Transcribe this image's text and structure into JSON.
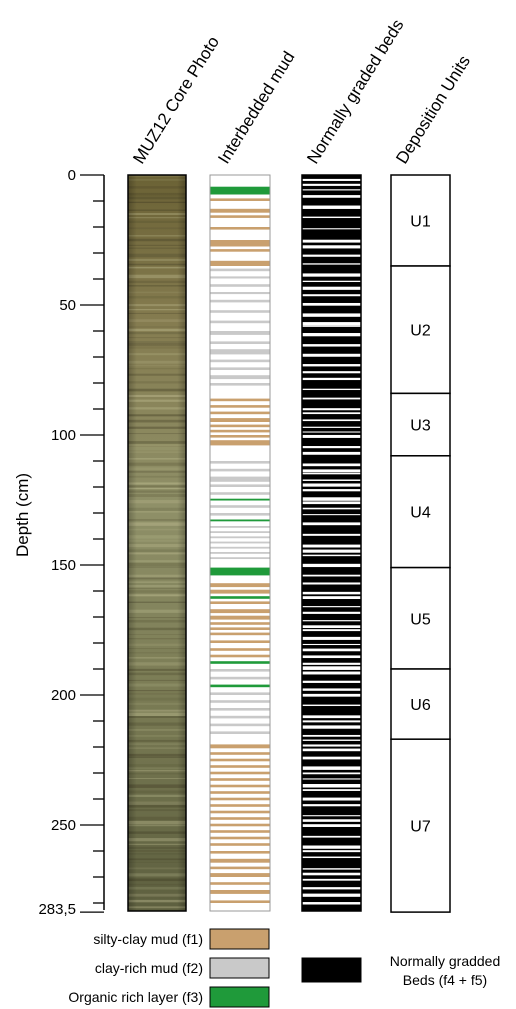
{
  "column_titles": {
    "core_photo": "MUZ12 Core Photo",
    "interbedded_mud": "Interbedded mud",
    "graded_beds": "Normally graded beds",
    "units": "Deposition Units"
  },
  "axis": {
    "label": "Depth (cm)",
    "ticks": [
      "0",
      "50",
      "100",
      "150",
      "200",
      "250",
      "283,5"
    ],
    "max_depth": 283.5
  },
  "units": [
    {
      "name": "U1",
      "top": 0,
      "bottom": 35
    },
    {
      "name": "U2",
      "top": 35,
      "bottom": 84
    },
    {
      "name": "U3",
      "top": 84,
      "bottom": 108
    },
    {
      "name": "U4",
      "top": 108,
      "bottom": 151
    },
    {
      "name": "U5",
      "top": 151,
      "bottom": 190
    },
    {
      "name": "U6",
      "top": 190,
      "bottom": 217
    },
    {
      "name": "U7",
      "top": 217,
      "bottom": 283.5
    }
  ],
  "legend": {
    "silty": "silty-clay mud (f1)",
    "clay": "clay-rich mud (f2)",
    "organic": "Organic rich layer (f3)",
    "graded_line1": "Normally gradded",
    "graded_line2": "Beds (f4 + f5)"
  },
  "colors": {
    "silty": "#c9a06e",
    "clay": "#c9c9c9",
    "organic": "#1f9a3a",
    "graded": "#000000"
  },
  "mud_layers": [
    {
      "type": "organic",
      "top": 4.5,
      "bottom": 7.5
    },
    {
      "type": "silty",
      "top": 9,
      "bottom": 10
    },
    {
      "type": "silty",
      "top": 13,
      "bottom": 14.5
    },
    {
      "type": "silty",
      "top": 15.5,
      "bottom": 16.5
    },
    {
      "type": "silty",
      "top": 20,
      "bottom": 21
    },
    {
      "type": "silty",
      "top": 25,
      "bottom": 27.5
    },
    {
      "type": "silty",
      "top": 28.5,
      "bottom": 29.5
    },
    {
      "type": "silty",
      "top": 33,
      "bottom": 35
    },
    {
      "type": "clay",
      "top": 36,
      "bottom": 37
    },
    {
      "type": "clay",
      "top": 39,
      "bottom": 39.8
    },
    {
      "type": "clay",
      "top": 42,
      "bottom": 43
    },
    {
      "type": "clay",
      "top": 45,
      "bottom": 45.8
    },
    {
      "type": "clay",
      "top": 48,
      "bottom": 49
    },
    {
      "type": "clay",
      "top": 52,
      "bottom": 53
    },
    {
      "type": "clay",
      "top": 56,
      "bottom": 57
    },
    {
      "type": "clay",
      "top": 60,
      "bottom": 61.5
    },
    {
      "type": "clay",
      "top": 64,
      "bottom": 65
    },
    {
      "type": "clay",
      "top": 67,
      "bottom": 69
    },
    {
      "type": "clay",
      "top": 71,
      "bottom": 72
    },
    {
      "type": "clay",
      "top": 74,
      "bottom": 75
    },
    {
      "type": "clay",
      "top": 77,
      "bottom": 78.5
    },
    {
      "type": "clay",
      "top": 80,
      "bottom": 81
    },
    {
      "type": "silty",
      "top": 86,
      "bottom": 87
    },
    {
      "type": "silty",
      "top": 88.5,
      "bottom": 89.5
    },
    {
      "type": "silty",
      "top": 91,
      "bottom": 92
    },
    {
      "type": "silty",
      "top": 93.5,
      "bottom": 95
    },
    {
      "type": "silty",
      "top": 96,
      "bottom": 97
    },
    {
      "type": "silty",
      "top": 98,
      "bottom": 99
    },
    {
      "type": "silty",
      "top": 100,
      "bottom": 101
    },
    {
      "type": "silty",
      "top": 102,
      "bottom": 104
    },
    {
      "type": "clay",
      "top": 110,
      "bottom": 111
    },
    {
      "type": "clay",
      "top": 113,
      "bottom": 114
    },
    {
      "type": "clay",
      "top": 116,
      "bottom": 118
    },
    {
      "type": "clay",
      "top": 119,
      "bottom": 120
    },
    {
      "type": "clay",
      "top": 122,
      "bottom": 123
    },
    {
      "type": "organic",
      "top": 124.5,
      "bottom": 125.2
    },
    {
      "type": "clay",
      "top": 127,
      "bottom": 128
    },
    {
      "type": "clay",
      "top": 130,
      "bottom": 131
    },
    {
      "type": "organic",
      "top": 132.5,
      "bottom": 133.2
    },
    {
      "type": "clay",
      "top": 135,
      "bottom": 135.7
    },
    {
      "type": "clay",
      "top": 137,
      "bottom": 137.7
    },
    {
      "type": "clay",
      "top": 139,
      "bottom": 139.7
    },
    {
      "type": "clay",
      "top": 141,
      "bottom": 141.7
    },
    {
      "type": "clay",
      "top": 143,
      "bottom": 143.7
    },
    {
      "type": "clay",
      "top": 145,
      "bottom": 145.7
    },
    {
      "type": "clay",
      "top": 147,
      "bottom": 147.7
    },
    {
      "type": "organic",
      "top": 151,
      "bottom": 154
    },
    {
      "type": "silty",
      "top": 157,
      "bottom": 158.5
    },
    {
      "type": "silty",
      "top": 159.5,
      "bottom": 161
    },
    {
      "type": "organic",
      "top": 162,
      "bottom": 163
    },
    {
      "type": "silty",
      "top": 164,
      "bottom": 165
    },
    {
      "type": "silty",
      "top": 167,
      "bottom": 168.5
    },
    {
      "type": "silty",
      "top": 169.5,
      "bottom": 171
    },
    {
      "type": "silty",
      "top": 172,
      "bottom": 173
    },
    {
      "type": "silty",
      "top": 174,
      "bottom": 175
    },
    {
      "type": "silty",
      "top": 176,
      "bottom": 177
    },
    {
      "type": "silty",
      "top": 179,
      "bottom": 180
    },
    {
      "type": "silty",
      "top": 182,
      "bottom": 183
    },
    {
      "type": "silty",
      "top": 184.5,
      "bottom": 185.5
    },
    {
      "type": "organic",
      "top": 187,
      "bottom": 188
    },
    {
      "type": "clay",
      "top": 190,
      "bottom": 191
    },
    {
      "type": "clay",
      "top": 193,
      "bottom": 194
    },
    {
      "type": "organic",
      "top": 196,
      "bottom": 197
    },
    {
      "type": "clay",
      "top": 199,
      "bottom": 200
    },
    {
      "type": "clay",
      "top": 202,
      "bottom": 203
    },
    {
      "type": "clay",
      "top": 205,
      "bottom": 206
    },
    {
      "type": "clay",
      "top": 208,
      "bottom": 209
    },
    {
      "type": "clay",
      "top": 211,
      "bottom": 212
    },
    {
      "type": "clay",
      "top": 214,
      "bottom": 215
    },
    {
      "type": "silty",
      "top": 219,
      "bottom": 220.5
    },
    {
      "type": "silty",
      "top": 222,
      "bottom": 223
    },
    {
      "type": "silty",
      "top": 224.5,
      "bottom": 225.5
    },
    {
      "type": "silty",
      "top": 227,
      "bottom": 228
    },
    {
      "type": "silty",
      "top": 229.5,
      "bottom": 230.5
    },
    {
      "type": "silty",
      "top": 232,
      "bottom": 233
    },
    {
      "type": "silty",
      "top": 234.5,
      "bottom": 235.5
    },
    {
      "type": "silty",
      "top": 237,
      "bottom": 238
    },
    {
      "type": "silty",
      "top": 239.5,
      "bottom": 240.5
    },
    {
      "type": "silty",
      "top": 242,
      "bottom": 243
    },
    {
      "type": "silty",
      "top": 244.5,
      "bottom": 245.5
    },
    {
      "type": "silty",
      "top": 247,
      "bottom": 248
    },
    {
      "type": "silty",
      "top": 249.5,
      "bottom": 250.5
    },
    {
      "type": "silty",
      "top": 252,
      "bottom": 253
    },
    {
      "type": "silty",
      "top": 254.5,
      "bottom": 255.5
    },
    {
      "type": "silty",
      "top": 257,
      "bottom": 258
    },
    {
      "type": "silty",
      "top": 260,
      "bottom": 261
    },
    {
      "type": "silty",
      "top": 263,
      "bottom": 264.5
    },
    {
      "type": "silty",
      "top": 266,
      "bottom": 267
    },
    {
      "type": "silty",
      "top": 268.5,
      "bottom": 270
    },
    {
      "type": "silty",
      "top": 272,
      "bottom": 273
    },
    {
      "type": "silty",
      "top": 275,
      "bottom": 276.5
    },
    {
      "type": "silty",
      "top": 279,
      "bottom": 280
    }
  ]
}
